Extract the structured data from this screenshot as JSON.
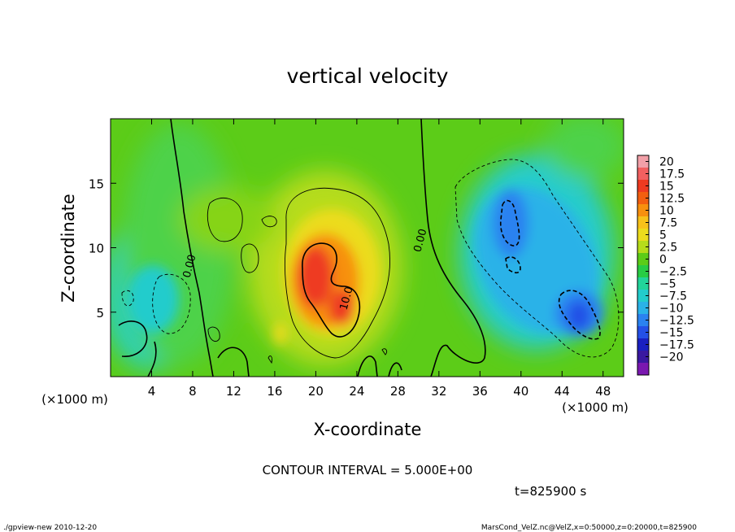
{
  "chart_data": {
    "type": "heatmap",
    "title": "vertical velocity",
    "xlabel": "X-coordinate",
    "ylabel": "Z-coordinate",
    "x_unit_label": "(×1000 m)",
    "y_unit_label": "(×1000 m)",
    "xlim": [
      0,
      50
    ],
    "ylim": [
      0,
      20
    ],
    "x_ticks": [
      4,
      8,
      12,
      16,
      20,
      24,
      28,
      32,
      36,
      40,
      44,
      48
    ],
    "y_ticks": [
      5,
      10,
      15
    ],
    "colorbar": {
      "levels": [
        20,
        17.5,
        15,
        12.5,
        10,
        7.5,
        5,
        2.5,
        0,
        -2.5,
        -5,
        -7.5,
        -10,
        -12.5,
        -15,
        -17.5,
        -20
      ],
      "labels": [
        "20",
        "17.5",
        "15",
        "12.5",
        "10",
        "7.5",
        "5",
        "2.5",
        "0",
        "−2.5",
        "−5",
        "−7.5",
        "−10",
        "−12.5",
        "−15",
        "−17.5",
        "−20"
      ],
      "colors": [
        "#f2a0a8",
        "#f26060",
        "#ee3a20",
        "#f25f10",
        "#f7900e",
        "#f7c21a",
        "#ecdc1c",
        "#b6dc1a",
        "#5ccc18",
        "#28cc44",
        "#22d49a",
        "#22cccc",
        "#2ab2e8",
        "#2a82f0",
        "#2450e6",
        "#1a20c0",
        "#3a18a0",
        "#7a18b0"
      ]
    },
    "contour_labels": [
      {
        "text": "0.00",
        "x": 8,
        "z": 8.5
      },
      {
        "text": "0.00",
        "x": 30.5,
        "z": 10.5
      },
      {
        "text": "10.0",
        "x": 23.3,
        "z": 6.0
      }
    ],
    "features": [
      {
        "name": "updraft",
        "x": 21,
        "z": 7.5,
        "max": 17
      },
      {
        "name": "downdraft",
        "x": 45.5,
        "z": 5,
        "min": -12.5
      }
    ],
    "contour_interval_text": "CONTOUR INTERVAL = 5.000E+00",
    "time_text": "t=825900 s"
  },
  "footer": {
    "left": "./gpview-new   2010-12-20",
    "right": "MarsCond_VelZ.nc@VelZ,x=0:50000,z=0:20000,t=825900"
  }
}
